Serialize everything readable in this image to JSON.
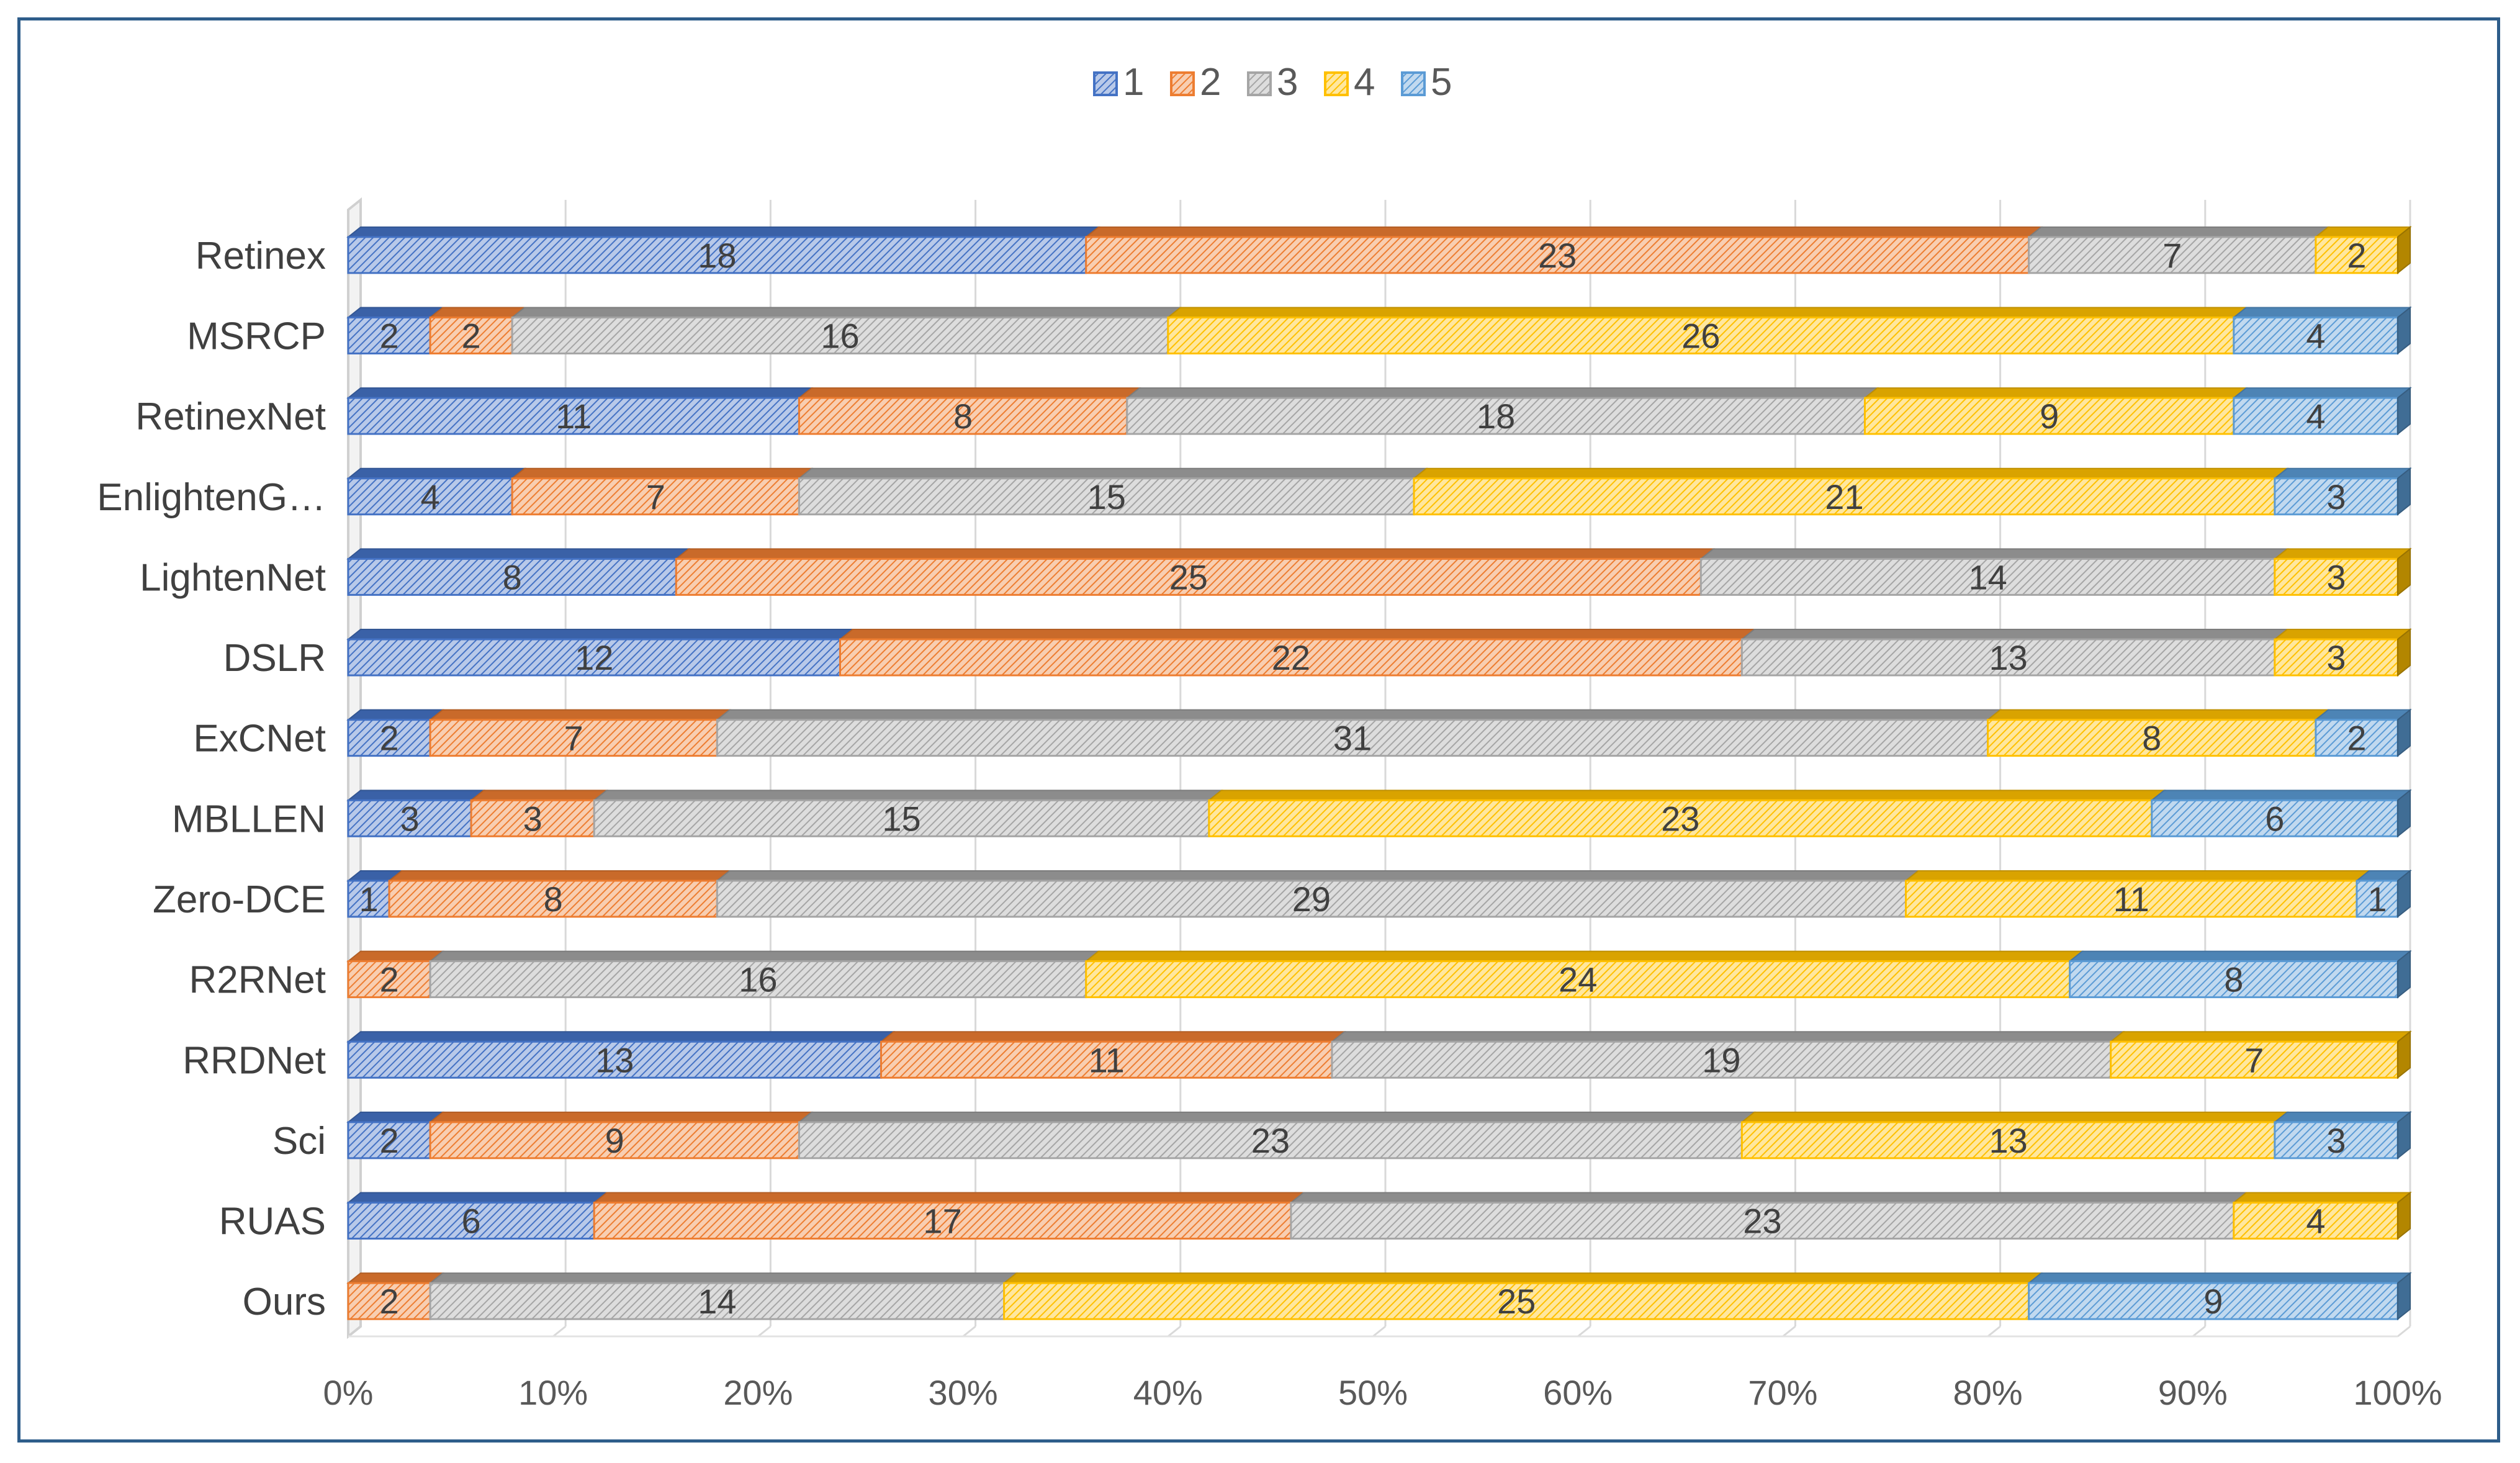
{
  "chart_data": {
    "type": "bar",
    "orientation": "horizontal",
    "stacked": "percent",
    "title": "",
    "xlabel": "",
    "ylabel": "",
    "xlim": [
      0,
      100
    ],
    "x_tick_labels": [
      "0%",
      "10%",
      "20%",
      "30%",
      "40%",
      "50%",
      "60%",
      "70%",
      "80%",
      "90%",
      "100%"
    ],
    "grid": true,
    "legend_position": "top",
    "categories": [
      "Retinex",
      "MSRCP",
      "RetinexNet",
      "EnlightenG…",
      "LightenNet",
      "DSLR",
      "ExCNet",
      "MBLLEN",
      "Zero-DCE",
      "R2RNet",
      "RRDNet",
      "Sci",
      "RUAS",
      "Ours"
    ],
    "series": [
      {
        "name": "1",
        "color": "#4472c4",
        "values": [
          18,
          2,
          11,
          4,
          8,
          12,
          2,
          3,
          1,
          0,
          13,
          2,
          6,
          0
        ]
      },
      {
        "name": "2",
        "color": "#ed7d31",
        "values": [
          23,
          2,
          8,
          7,
          25,
          22,
          7,
          3,
          8,
          2,
          11,
          9,
          17,
          2
        ]
      },
      {
        "name": "3",
        "color": "#a5a5a5",
        "values": [
          7,
          16,
          18,
          15,
          14,
          13,
          31,
          15,
          29,
          16,
          19,
          23,
          23,
          14
        ]
      },
      {
        "name": "4",
        "color": "#ffc000",
        "values": [
          2,
          26,
          9,
          21,
          3,
          3,
          8,
          23,
          11,
          24,
          7,
          13,
          4,
          25
        ]
      },
      {
        "name": "5",
        "color": "#5b9bd5",
        "values": [
          0,
          4,
          4,
          3,
          0,
          0,
          2,
          6,
          1,
          8,
          0,
          3,
          0,
          9
        ]
      }
    ]
  }
}
